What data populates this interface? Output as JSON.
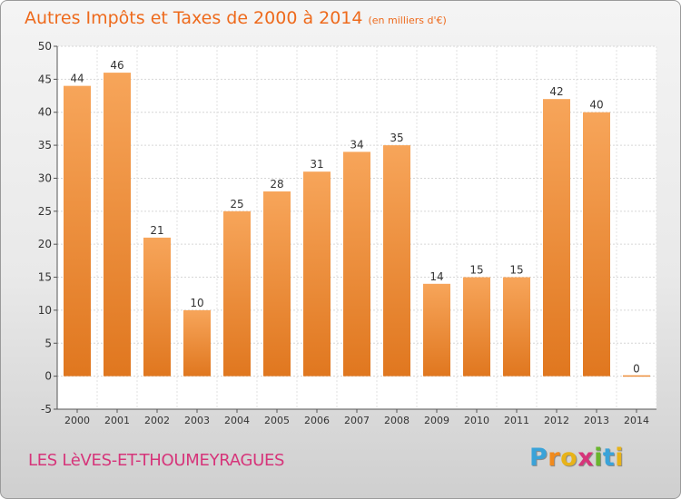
{
  "title": "Autres Impôts et Taxes de 2000 à 2014",
  "unit_label": "(en milliers d'€)",
  "location": "LES LèVES-ET-THOUMEYRAGUES",
  "logo": {
    "text": "Proxiti",
    "letters": [
      "P",
      "r",
      "o",
      "x",
      "i",
      "t",
      "i"
    ],
    "colors": [
      "#3aa3d9",
      "#f08a1d",
      "#e8b319",
      "#d6357a",
      "#6ab52e",
      "#3aa3d9",
      "#e8b319"
    ]
  },
  "colors": {
    "title": "#ee6a1c",
    "bar_light": "#f7a55a",
    "bar_dark": "#e0771f",
    "location": "#d6357a"
  },
  "chart_data": {
    "type": "bar",
    "title": "Autres Impôts et Taxes de 2000 à 2014",
    "subtitle": "(en milliers d'€)",
    "xlabel": "",
    "ylabel": "",
    "categories": [
      "2000",
      "2001",
      "2002",
      "2003",
      "2004",
      "2005",
      "2006",
      "2007",
      "2008",
      "2009",
      "2010",
      "2011",
      "2012",
      "2013",
      "2014"
    ],
    "values": [
      44,
      46,
      21,
      10,
      25,
      28,
      31,
      34,
      35,
      14,
      15,
      15,
      42,
      40,
      0
    ],
    "data_labels": [
      "44",
      "46",
      "21",
      "10",
      "25",
      "28",
      "31",
      "34",
      "35",
      "14",
      "15",
      "15",
      "42",
      "40",
      "0"
    ],
    "ylim": [
      -5,
      50
    ],
    "yticks": [
      -5,
      0,
      5,
      10,
      15,
      20,
      25,
      30,
      35,
      40,
      45,
      50
    ],
    "grid": true,
    "legend": "none"
  }
}
